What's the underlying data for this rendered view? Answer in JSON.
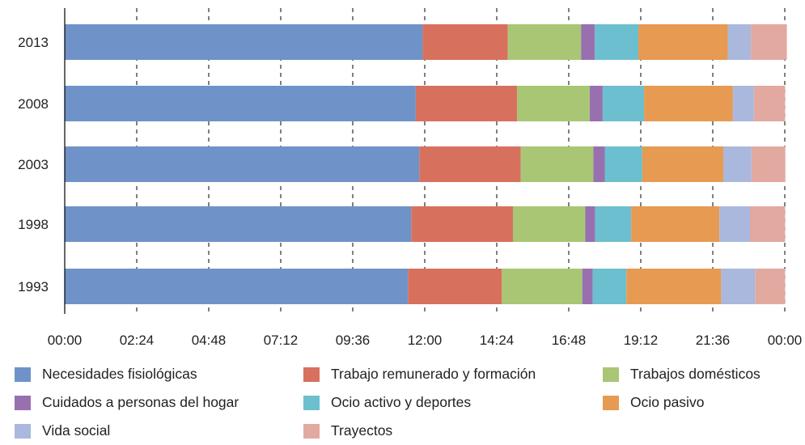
{
  "chart_data": {
    "type": "bar",
    "orientation": "horizontal",
    "stacked": true,
    "categories": [
      "2013",
      "2008",
      "2003",
      "1998",
      "1993"
    ],
    "xlim": [
      0,
      24
    ],
    "xticks": [
      "00:00",
      "02:24",
      "04:48",
      "07:12",
      "09:36",
      "12:00",
      "14:24",
      "16:48",
      "19:12",
      "21:36",
      "00:00"
    ],
    "grid": "vertical dashed",
    "legend_position": "bottom",
    "series": [
      {
        "name": "Necesidades fisiológicas",
        "color": "#6f93c8",
        "values": [
          11.93,
          11.7,
          11.82,
          11.55,
          11.44
        ]
      },
      {
        "name": "Trabajo remunerado y formación",
        "color": "#d8705e",
        "values": [
          2.84,
          3.38,
          3.38,
          3.39,
          3.13
        ]
      },
      {
        "name": "Trabajos domésticos",
        "color": "#a8c674",
        "values": [
          2.44,
          2.42,
          2.42,
          2.41,
          2.68
        ]
      },
      {
        "name": "Cuidados a personas del hogar",
        "color": "#9870b0",
        "values": [
          0.46,
          0.43,
          0.38,
          0.33,
          0.35
        ]
      },
      {
        "name": "Ocio activo y deportes",
        "color": "#6cbfce",
        "values": [
          1.45,
          1.38,
          1.25,
          1.2,
          1.12
        ]
      },
      {
        "name": "Ocio pasivo",
        "color": "#e79a52",
        "values": [
          2.98,
          2.96,
          2.7,
          2.94,
          3.16
        ]
      },
      {
        "name": "Vida social",
        "color": "#a9b8dc",
        "values": [
          0.77,
          0.7,
          0.94,
          1.02,
          1.13
        ]
      },
      {
        "name": "Trayectos",
        "color": "#e2a9a0",
        "values": [
          1.2,
          1.04,
          1.13,
          1.17,
          1.0
        ]
      }
    ]
  }
}
